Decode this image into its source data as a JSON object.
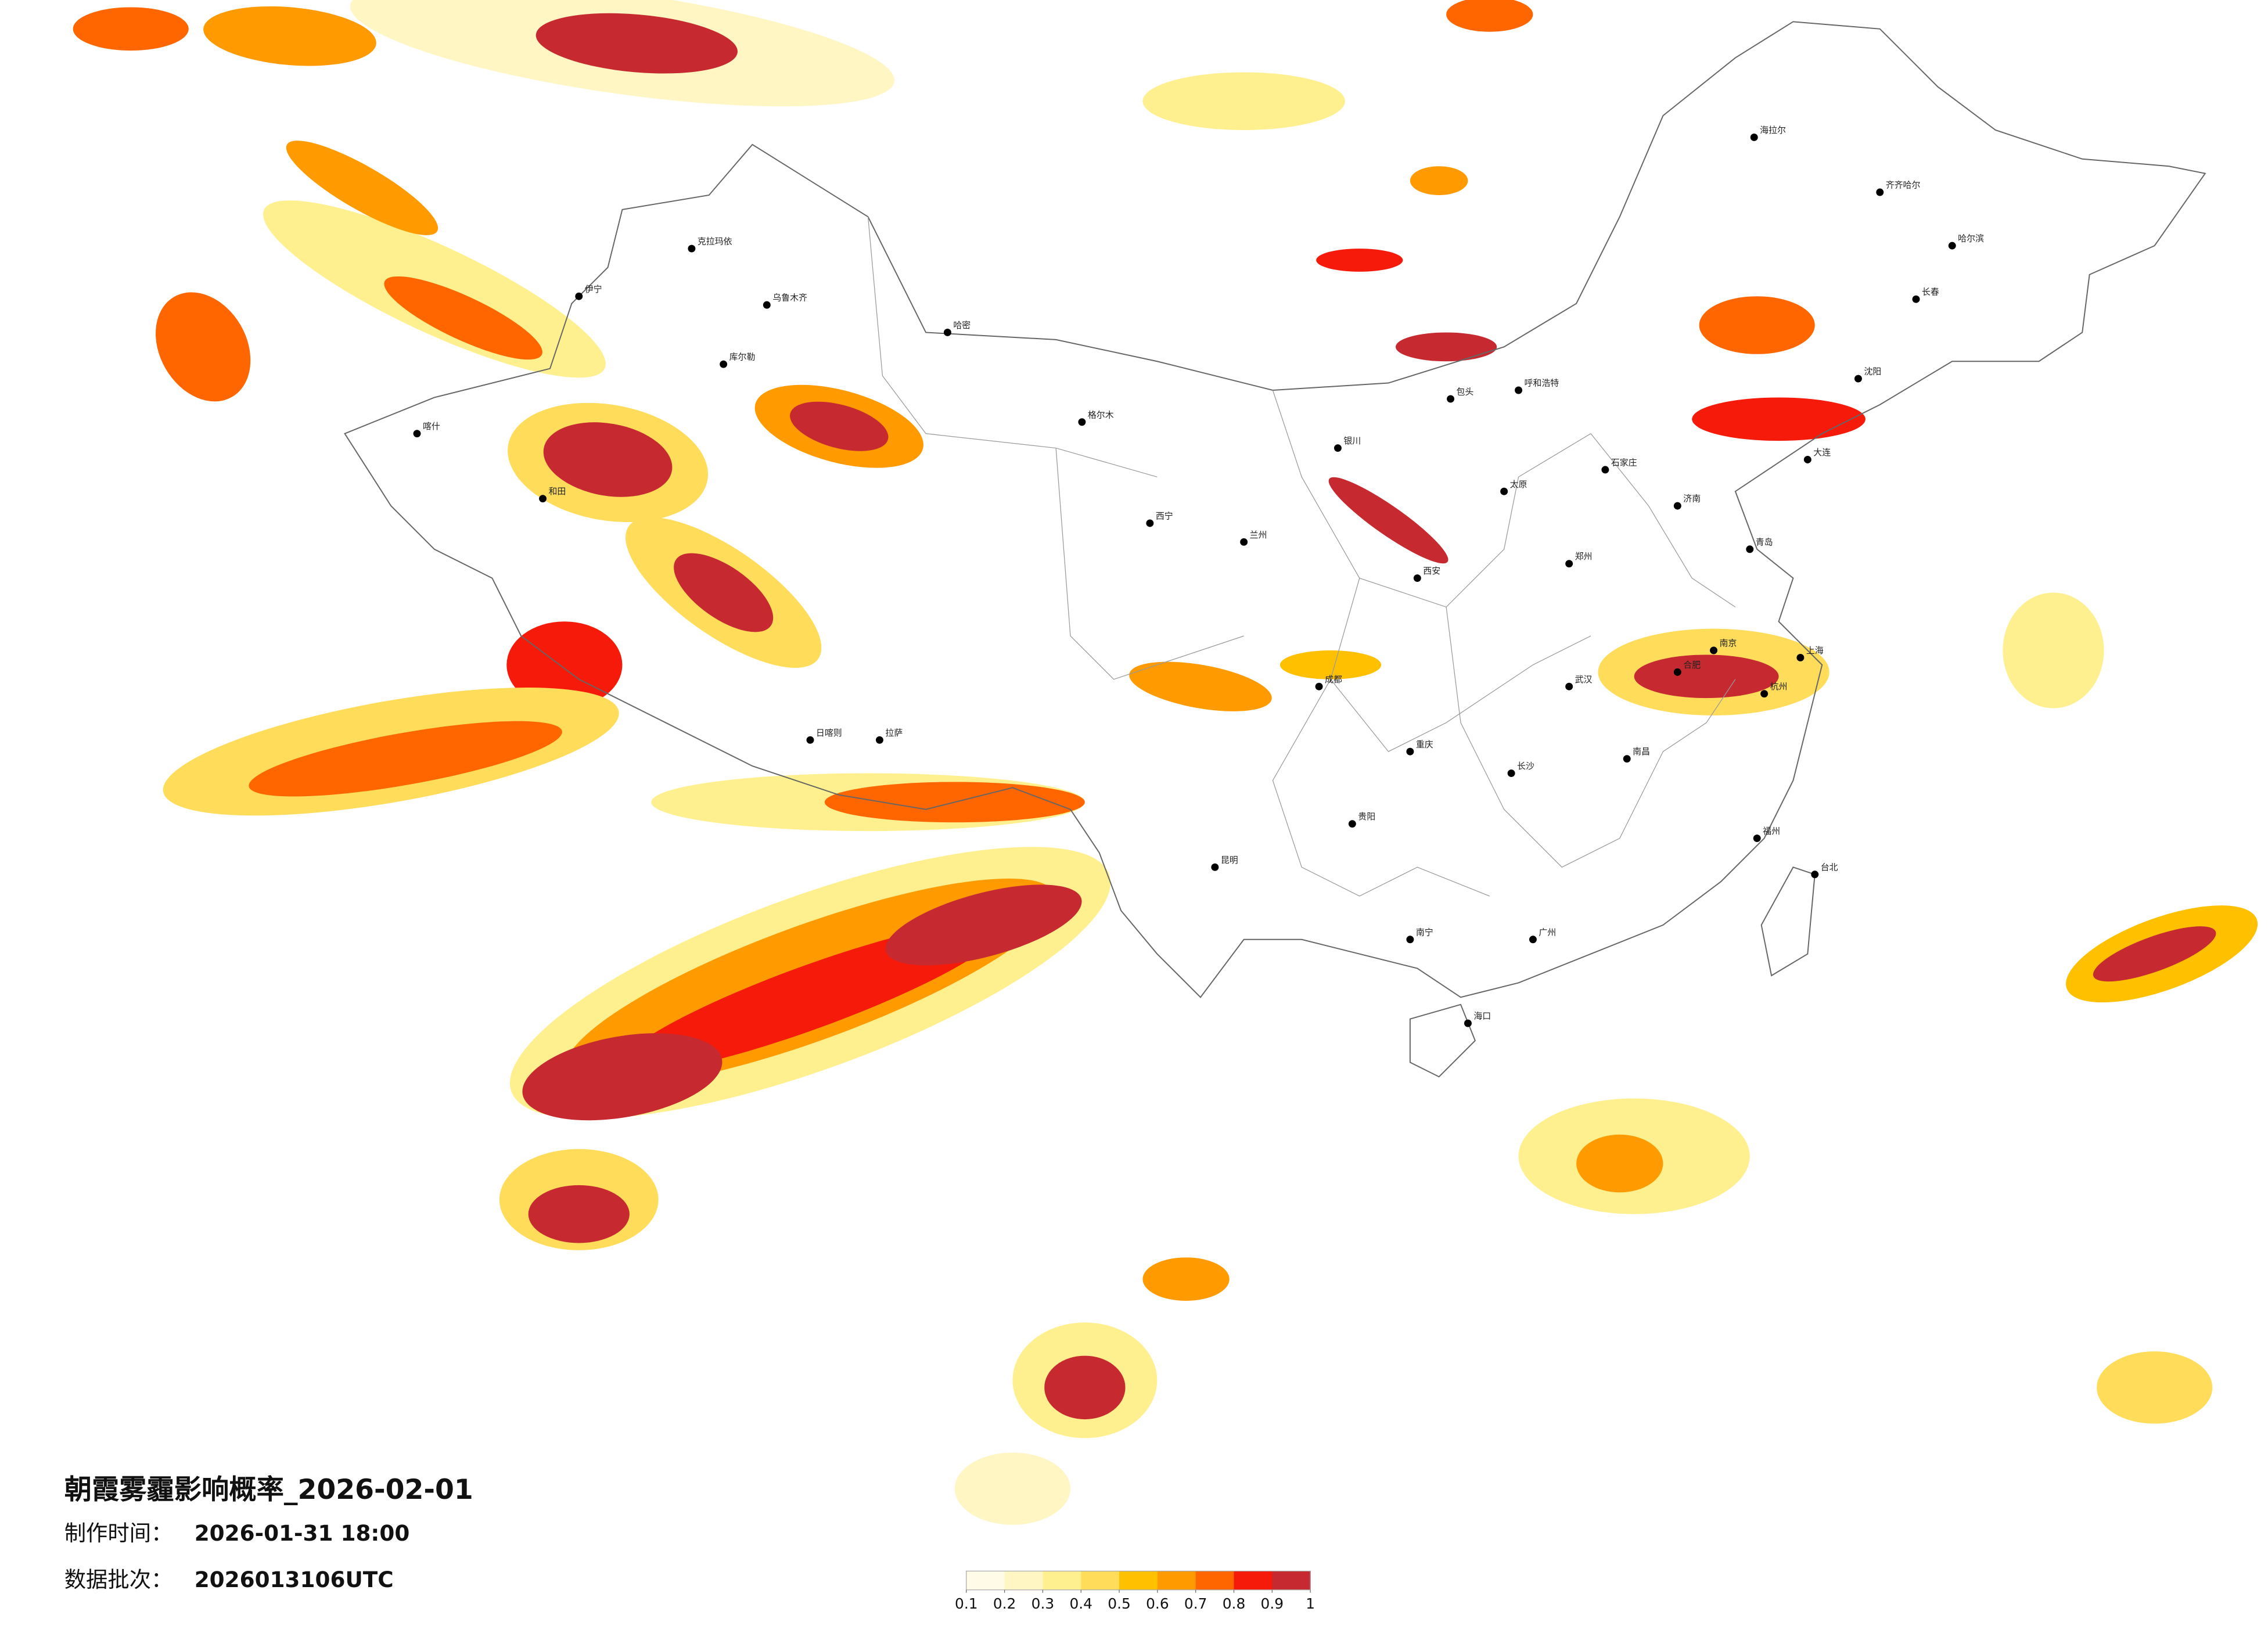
{
  "title": "朝霞雾霾影响概率_2026-02-01",
  "info": [
    {
      "label": "制作时间：",
      "value": "2026-01-31 18:00"
    },
    {
      "label": "数据批次：",
      "value": "2026013106UTC"
    }
  ],
  "legend": {
    "ticks": [
      0.1,
      0.2,
      0.3,
      0.4,
      0.5,
      0.6,
      0.7,
      0.8,
      0.9,
      1
    ],
    "colors": [
      "#fffbe6",
      "#fff6c4",
      "#fff08f",
      "#ffdc5a",
      "#ffc000",
      "#ff9a00",
      "#ff6600",
      "#f51a0a",
      "#c62a30"
    ]
  },
  "cities": [
    "海拉尔",
    "齐齐哈尔",
    "哈尔滨",
    "长春",
    "沈阳",
    "呼和浩特",
    "包头",
    "银川",
    "兰州",
    "西宁",
    "乌鲁木齐",
    "喀什",
    "和田",
    "拉萨",
    "日喀则",
    "成都",
    "重庆",
    "贵阳",
    "昆明",
    "南宁",
    "广州",
    "长沙",
    "武汉",
    "郑州",
    "西安",
    "太原",
    "石家庄",
    "济南",
    "南京",
    "上海",
    "杭州",
    "福州",
    "台北",
    "南昌",
    "合肥",
    "海口",
    "克拉玛依",
    "伊宁",
    "库尔勒",
    "哈密",
    "格尔木",
    "大连",
    "青岛"
  ]
}
